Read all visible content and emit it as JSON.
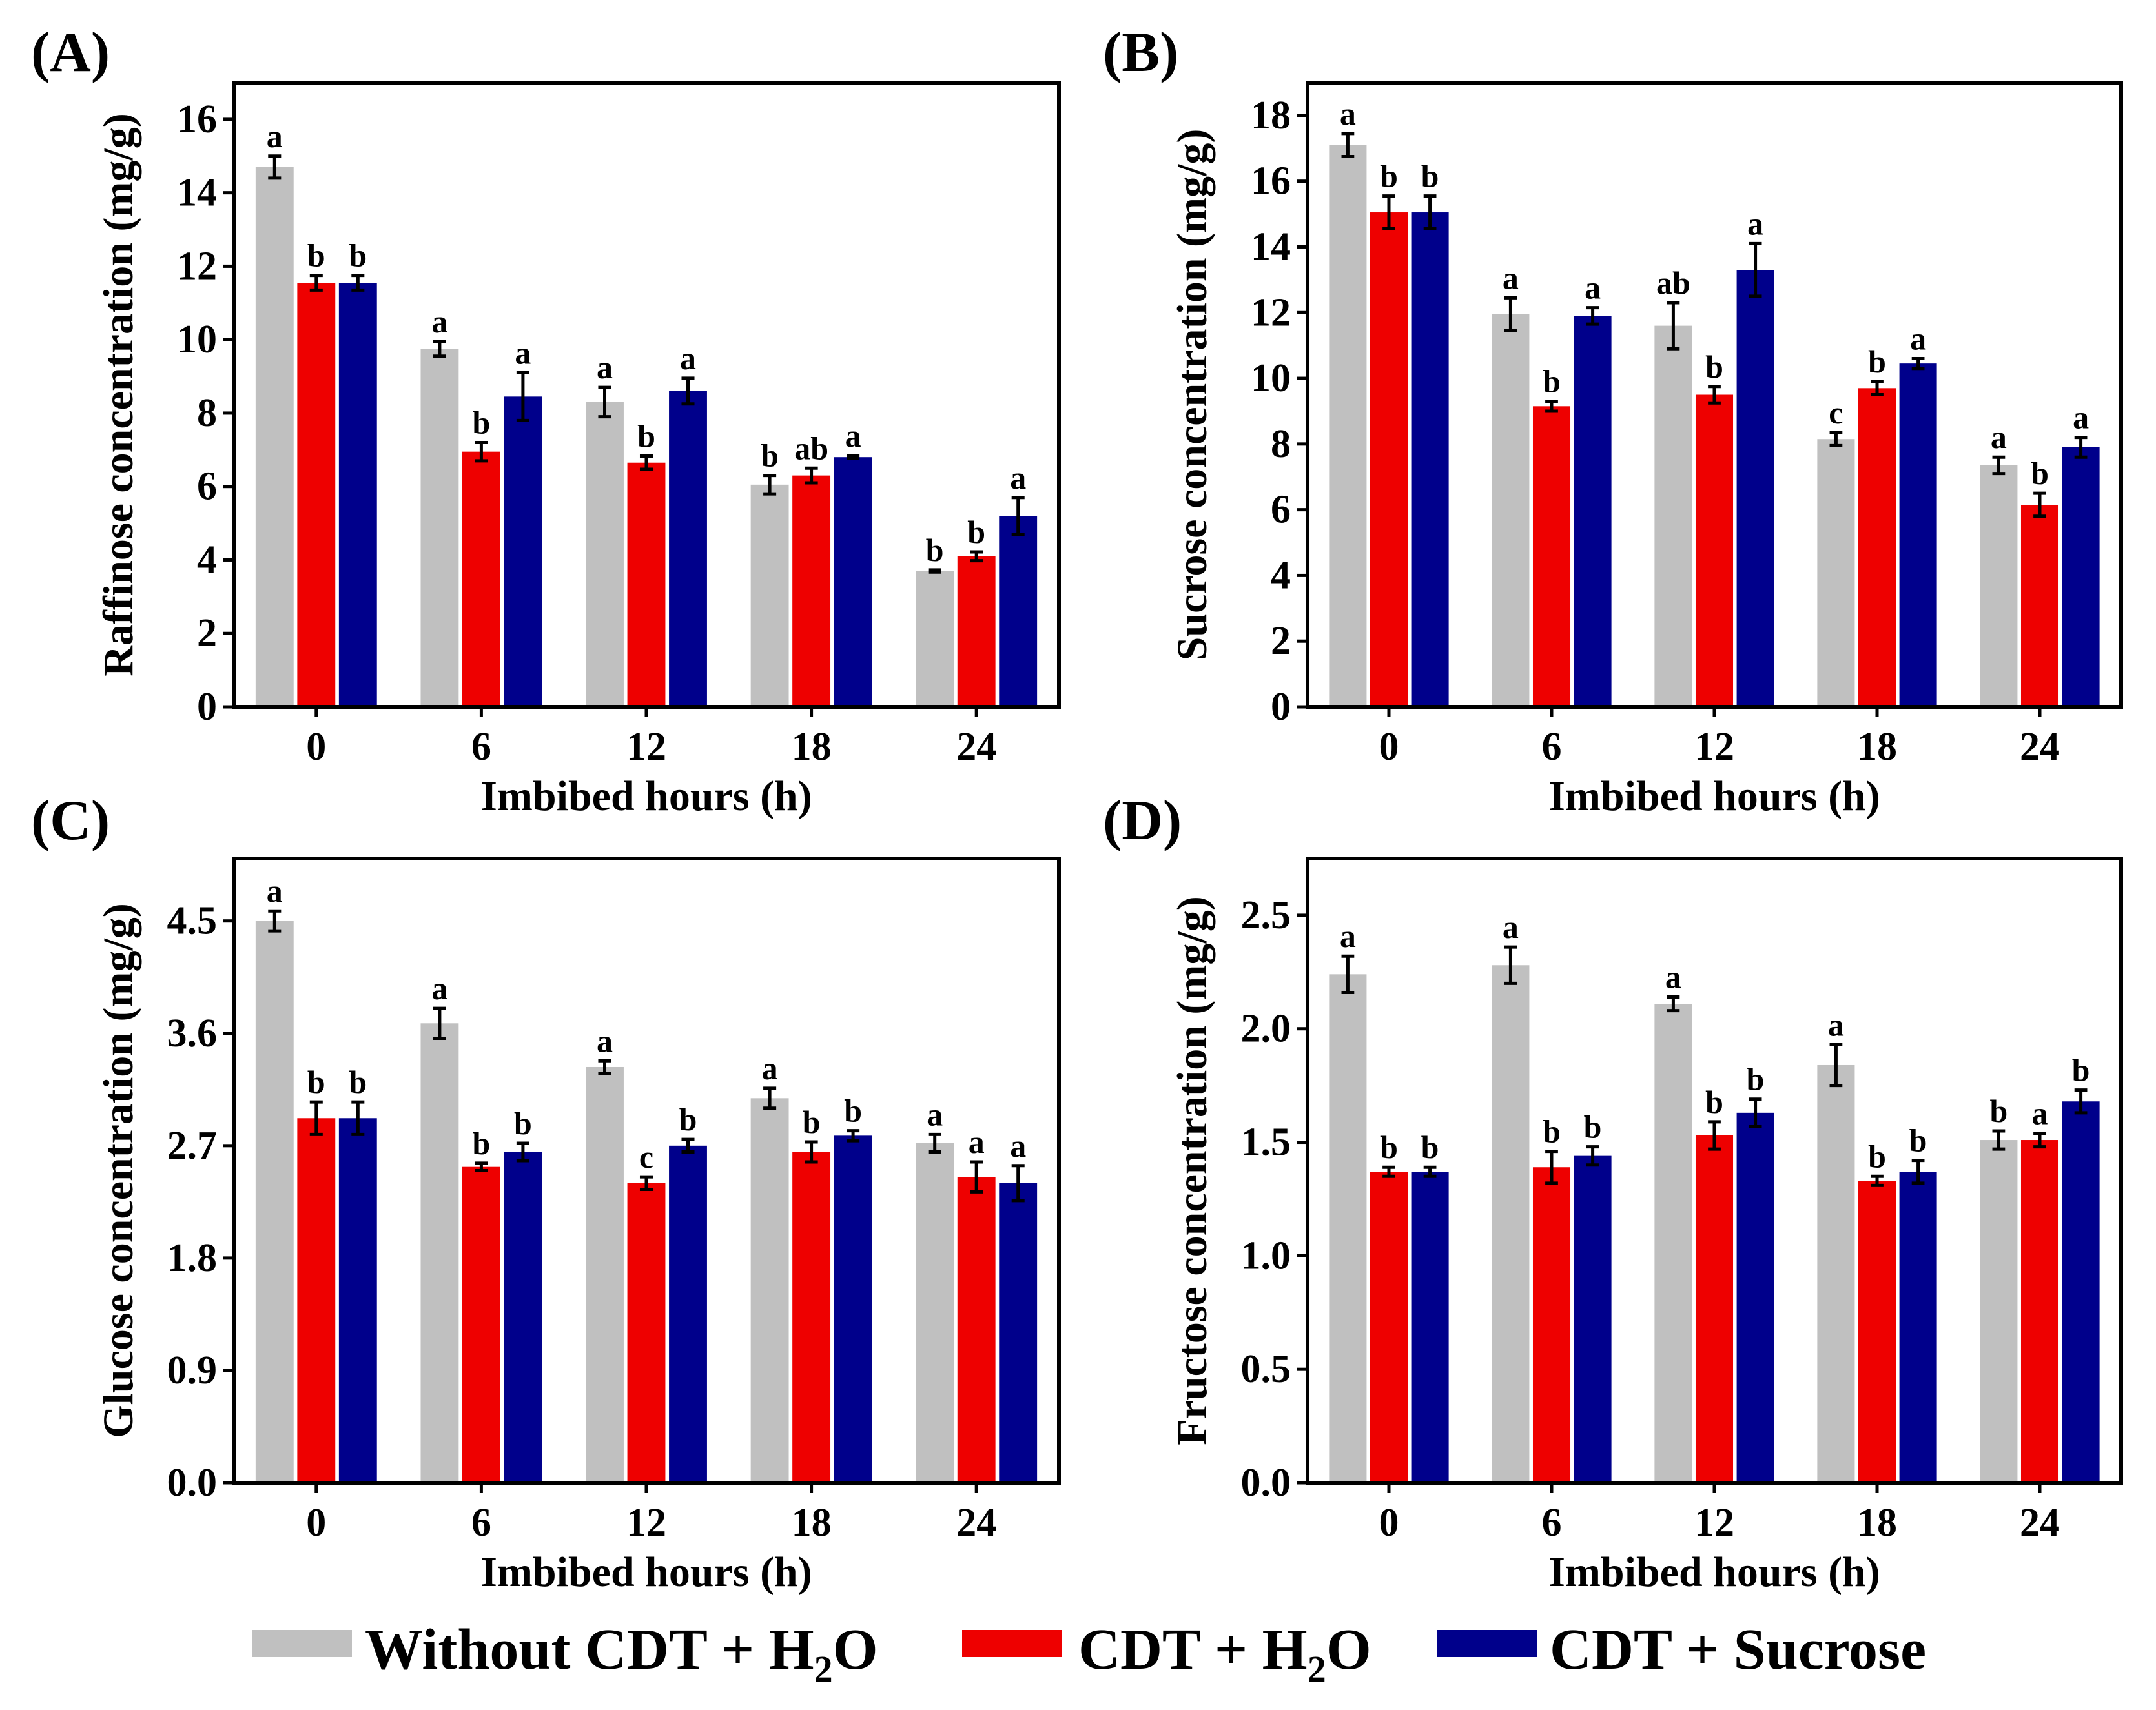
{
  "legend": [
    {
      "label": "Without CDT + H",
      "sub": "2",
      "tail": "O",
      "color": "#c0c0c0"
    },
    {
      "label": "CDT + H",
      "sub": "2",
      "tail": "O",
      "color": "#ee0000"
    },
    {
      "label": "CDT + Sucrose",
      "sub": "",
      "tail": "",
      "color": "#00008b"
    }
  ],
  "chart_data": [
    {
      "type": "bar",
      "panel": "(A)",
      "title": "",
      "xlabel": "Imbibed hours (h)",
      "ylabel": "Raffinose concentration (mg/g)",
      "categories": [
        "0",
        "6",
        "12",
        "18",
        "24"
      ],
      "ylim": [
        0,
        17
      ],
      "yticks": [
        "0",
        "2",
        "4",
        "6",
        "8",
        "10",
        "12",
        "14",
        "16"
      ],
      "ytick_values": [
        0,
        2,
        4,
        6,
        8,
        10,
        12,
        14,
        16
      ],
      "series": [
        {
          "name": "Without CDT + H2O",
          "values": [
            14.7,
            9.75,
            8.3,
            6.05,
            3.7
          ],
          "errors": [
            0.3,
            0.2,
            0.4,
            0.25,
            0.03
          ],
          "letters": [
            "a",
            "a",
            "a",
            "b",
            "b"
          ]
        },
        {
          "name": "CDT + H2O",
          "values": [
            11.55,
            6.95,
            6.65,
            6.3,
            4.1
          ],
          "errors": [
            0.2,
            0.25,
            0.18,
            0.2,
            0.12
          ],
          "letters": [
            "b",
            "b",
            "b",
            "ab",
            "b"
          ]
        },
        {
          "name": "CDT + Sucrose",
          "values": [
            11.55,
            8.45,
            8.6,
            6.8,
            5.2
          ],
          "errors": [
            0.2,
            0.65,
            0.35,
            0.04,
            0.5
          ],
          "letters": [
            "b",
            "a",
            "a",
            "a",
            "a"
          ]
        }
      ]
    },
    {
      "type": "bar",
      "panel": "(B)",
      "title": "",
      "xlabel": "Imbibed hours (h)",
      "ylabel": "Sucrose concentration (mg/g)",
      "categories": [
        "0",
        "6",
        "12",
        "18",
        "24"
      ],
      "ylim": [
        0,
        19
      ],
      "yticks": [
        "0",
        "2",
        "4",
        "6",
        "8",
        "10",
        "12",
        "14",
        "16",
        "18"
      ],
      "ytick_values": [
        0,
        2,
        4,
        6,
        8,
        10,
        12,
        14,
        16,
        18
      ],
      "series": [
        {
          "name": "Without CDT + H2O",
          "values": [
            17.1,
            11.95,
            11.6,
            8.15,
            7.35
          ],
          "errors": [
            0.35,
            0.5,
            0.7,
            0.2,
            0.25
          ],
          "letters": [
            "a",
            "a",
            "ab",
            "c",
            "a"
          ]
        },
        {
          "name": "CDT + H2O",
          "values": [
            15.05,
            9.15,
            9.5,
            9.7,
            6.15
          ],
          "errors": [
            0.5,
            0.15,
            0.25,
            0.2,
            0.35
          ],
          "letters": [
            "b",
            "b",
            "b",
            "b",
            "b"
          ]
        },
        {
          "name": "CDT + Sucrose",
          "values": [
            15.05,
            11.9,
            13.3,
            10.45,
            7.9
          ],
          "errors": [
            0.5,
            0.25,
            0.8,
            0.15,
            0.3
          ],
          "letters": [
            "b",
            "a",
            "a",
            "a",
            "a"
          ]
        }
      ]
    },
    {
      "type": "bar",
      "panel": "(C)",
      "title": "",
      "xlabel": "Imbibed hours (h)",
      "ylabel": "Glucose concentration (mg/g)",
      "categories": [
        "0",
        "6",
        "12",
        "18",
        "24"
      ],
      "ylim": [
        0,
        5.0
      ],
      "yticks": [
        "0.0",
        "0.9",
        "1.8",
        "2.7",
        "3.6",
        "4.5"
      ],
      "ytick_values": [
        0,
        0.9,
        1.8,
        2.7,
        3.6,
        4.5
      ],
      "series": [
        {
          "name": "Without CDT + H2O",
          "values": [
            4.5,
            3.68,
            3.33,
            3.08,
            2.72
          ],
          "errors": [
            0.08,
            0.12,
            0.05,
            0.08,
            0.07
          ],
          "letters": [
            "a",
            "a",
            "a",
            "a",
            "a"
          ]
        },
        {
          "name": "CDT + H2O",
          "values": [
            2.92,
            2.53,
            2.4,
            2.65,
            2.45
          ],
          "errors": [
            0.13,
            0.03,
            0.05,
            0.08,
            0.12
          ],
          "letters": [
            "b",
            "b",
            "c",
            "b",
            "a"
          ]
        },
        {
          "name": "CDT + Sucrose",
          "values": [
            2.92,
            2.65,
            2.7,
            2.78,
            2.4
          ],
          "errors": [
            0.13,
            0.07,
            0.05,
            0.04,
            0.14
          ],
          "letters": [
            "b",
            "b",
            "b",
            "b",
            "a"
          ]
        }
      ]
    },
    {
      "type": "bar",
      "panel": "(D)",
      "title": "",
      "xlabel": "Imbibed hours (h)",
      "ylabel": "Fructose concentration (mg/g)",
      "categories": [
        "0",
        "6",
        "12",
        "18",
        "24"
      ],
      "ylim": [
        0,
        2.75
      ],
      "yticks": [
        "0.0",
        "0.5",
        "1.0",
        "1.5",
        "2.0",
        "2.5"
      ],
      "ytick_values": [
        0,
        0.5,
        1.0,
        1.5,
        2.0,
        2.5
      ],
      "series": [
        {
          "name": "Without CDT + H2O",
          "values": [
            2.24,
            2.28,
            2.11,
            1.84,
            1.51
          ],
          "errors": [
            0.08,
            0.08,
            0.03,
            0.09,
            0.04
          ],
          "letters": [
            "a",
            "a",
            "a",
            "a",
            "b"
          ]
        },
        {
          "name": "CDT + H2O",
          "values": [
            1.37,
            1.39,
            1.53,
            1.33,
            1.51
          ],
          "errors": [
            0.02,
            0.07,
            0.06,
            0.02,
            0.03
          ],
          "letters": [
            "b",
            "b",
            "b",
            "b",
            "a"
          ]
        },
        {
          "name": "CDT + Sucrose",
          "values": [
            1.37,
            1.44,
            1.63,
            1.37,
            1.68
          ],
          "errors": [
            0.02,
            0.04,
            0.06,
            0.05,
            0.05
          ],
          "letters": [
            "b",
            "b",
            "b",
            "b",
            "b"
          ]
        }
      ]
    }
  ]
}
